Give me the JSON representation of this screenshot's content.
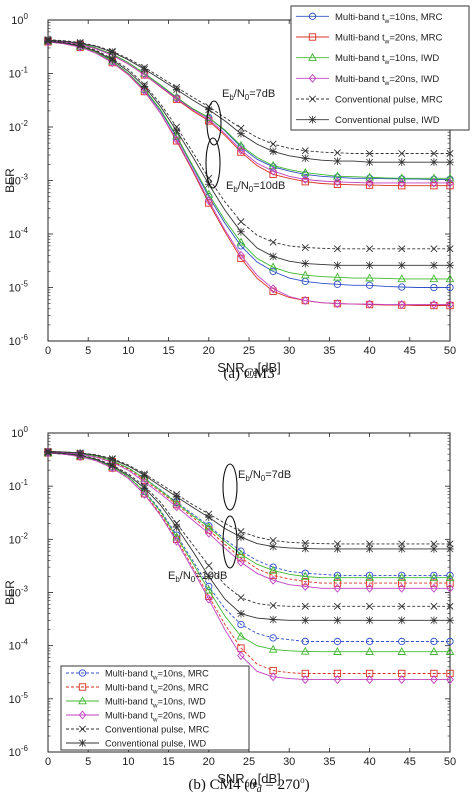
{
  "chart_data": [
    {
      "type": "line",
      "caption": "(a) CM3",
      "xlabel": "SNR",
      "xlabel_sub": "pre",
      "xlabel_unit": "[dB]",
      "ylabel": "BER",
      "xlim": [
        0,
        50
      ],
      "ylim": [
        1e-06,
        1
      ],
      "yscale": "log",
      "grid": false,
      "xticks": [
        "0",
        "5",
        "10",
        "15",
        "20",
        "25",
        "30",
        "35",
        "40",
        "45",
        "50"
      ],
      "yticks": [
        {
          "base": "10",
          "exp": "0"
        },
        {
          "base": "10",
          "exp": "-1"
        },
        {
          "base": "10",
          "exp": "-2"
        },
        {
          "base": "10",
          "exp": "-3"
        },
        {
          "base": "10",
          "exp": "-4"
        },
        {
          "base": "10",
          "exp": "-5"
        },
        {
          "base": "10",
          "exp": "-6"
        }
      ],
      "legend_position": "top-right",
      "annotations": [
        {
          "text_pre": "E",
          "sub1": "b",
          "text_mid": "/N",
          "sub2": "0",
          "text_post": "=7dB"
        },
        {
          "text_pre": "E",
          "sub1": "b",
          "text_mid": "/N",
          "sub2": "0",
          "text_post": "=10dB"
        }
      ],
      "x": [
        0,
        2,
        4,
        6,
        8,
        10,
        12,
        14,
        16,
        18,
        20,
        22,
        24,
        26,
        28,
        30,
        32,
        34,
        36,
        38,
        40,
        42,
        44,
        46,
        48,
        50
      ],
      "series": [
        {
          "name": "Multi-band  t_w=10ns, MRC",
          "name_pre": "Multi-band  t",
          "name_sub": "w",
          "name_post": "=10ns, MRC",
          "color": "#3050c8",
          "marker": "circle",
          "dash": false,
          "values_7dB": [
            0.42,
            0.4,
            0.36,
            0.3,
            0.23,
            0.16,
            0.1,
            0.06,
            0.035,
            0.022,
            0.015,
            0.0085,
            0.0042,
            0.0025,
            0.0018,
            0.0015,
            0.0013,
            0.0012,
            0.00115,
            0.0011,
            0.0011,
            0.00108,
            0.00107,
            0.00106,
            0.00105,
            0.00105
          ],
          "values_10dB": [
            0.4,
            0.37,
            0.32,
            0.25,
            0.17,
            0.1,
            0.05,
            0.02,
            0.0065,
            0.0018,
            0.0005,
            0.00016,
            6e-05,
            3e-05,
            2e-05,
            1.5e-05,
            1.3e-05,
            1.2e-05,
            1.15e-05,
            1.1e-05,
            1.1e-05,
            1.05e-05,
            1.02e-05,
            1e-05,
            1e-05,
            1e-05
          ]
        },
        {
          "name": "Multi-band  t_w=20ns, MRC",
          "name_pre": "Multi-band  t",
          "name_sub": "w",
          "name_post": "=20ns, MRC",
          "color": "#d83020",
          "marker": "square",
          "dash": false,
          "values_7dB": [
            0.41,
            0.39,
            0.35,
            0.29,
            0.22,
            0.15,
            0.094,
            0.056,
            0.033,
            0.02,
            0.013,
            0.007,
            0.0034,
            0.0019,
            0.0013,
            0.0011,
            0.00095,
            0.00088,
            0.00085,
            0.00083,
            0.00082,
            0.00081,
            0.0008,
            0.0008,
            0.0008,
            0.0008
          ],
          "values_10dB": [
            0.39,
            0.36,
            0.31,
            0.24,
            0.16,
            0.095,
            0.046,
            0.018,
            0.0055,
            0.0015,
            0.00038,
            0.00011,
            3.5e-05,
            1.5e-05,
            8.5e-06,
            6.5e-06,
            5.7e-06,
            5.2e-06,
            5e-06,
            4.9e-06,
            4.8e-06,
            4.7e-06,
            4.7e-06,
            4.6e-06,
            4.6e-06,
            4.6e-06
          ]
        },
        {
          "name": "Multi-band  t_w=10ns, IWD",
          "name_pre": "Multi-band  t",
          "name_sub": "w",
          "name_post": "=10ns, IWD",
          "color": "#40b830",
          "marker": "triangle",
          "dash": false,
          "values_7dB": [
            0.42,
            0.4,
            0.36,
            0.3,
            0.23,
            0.16,
            0.1,
            0.061,
            0.036,
            0.022,
            0.015,
            0.0088,
            0.0045,
            0.0027,
            0.0019,
            0.0016,
            0.0014,
            0.0013,
            0.0012,
            0.00118,
            0.00115,
            0.00112,
            0.0011,
            0.0011,
            0.0011,
            0.0011
          ],
          "values_10dB": [
            0.4,
            0.37,
            0.32,
            0.25,
            0.17,
            0.1,
            0.051,
            0.021,
            0.0068,
            0.0019,
            0.00055,
            0.00018,
            7e-05,
            3.5e-05,
            2.4e-05,
            1.9e-05,
            1.7e-05,
            1.6e-05,
            1.55e-05,
            1.5e-05,
            1.5e-05,
            1.48e-05,
            1.45e-05,
            1.45e-05,
            1.45e-05,
            1.45e-05
          ]
        },
        {
          "name": "Multi-band  t_w=20ns, IWD",
          "name_pre": "Multi-band  t",
          "name_sub": "w",
          "name_post": "=20ns, IWD",
          "color": "#c040c0",
          "marker": "diamond",
          "dash": false,
          "values_7dB": [
            0.41,
            0.39,
            0.35,
            0.29,
            0.22,
            0.15,
            0.095,
            0.057,
            0.034,
            0.021,
            0.014,
            0.0075,
            0.0037,
            0.0021,
            0.0015,
            0.0012,
            0.00105,
            0.00098,
            0.00094,
            0.00092,
            0.0009,
            0.0009,
            0.0009,
            0.0009,
            0.0009,
            0.0009
          ],
          "values_10dB": [
            0.39,
            0.36,
            0.31,
            0.24,
            0.16,
            0.096,
            0.047,
            0.018,
            0.0058,
            0.0016,
            0.00042,
            0.00012,
            4e-05,
            1.7e-05,
            9.5e-06,
            6.8e-06,
            5.7e-06,
            5.2e-06,
            5e-06,
            4.9e-06,
            4.9e-06,
            4.8e-06,
            4.8e-06,
            4.8e-06,
            4.8e-06,
            4.8e-06
          ]
        },
        {
          "name": "Conventional pulse, MRC",
          "name_pre": "Conventional pulse, MRC",
          "name_sub": "",
          "name_post": "",
          "color": "#333333",
          "marker": "x",
          "dash": true,
          "values_7dB": [
            0.43,
            0.41,
            0.38,
            0.33,
            0.26,
            0.19,
            0.13,
            0.085,
            0.055,
            0.036,
            0.024,
            0.015,
            0.0095,
            0.0064,
            0.0048,
            0.004,
            0.0036,
            0.0034,
            0.0033,
            0.0032,
            0.0032,
            0.0032,
            0.0032,
            0.0032,
            0.0032,
            0.0032
          ],
          "values_10dB": [
            0.41,
            0.38,
            0.34,
            0.27,
            0.19,
            0.12,
            0.062,
            0.027,
            0.01,
            0.0034,
            0.0011,
            0.0004,
            0.00017,
            9.5e-05,
            7e-05,
            6e-05,
            5.6e-05,
            5.4e-05,
            5.3e-05,
            5.3e-05,
            5.3e-05,
            5.3e-05,
            5.3e-05,
            5.3e-05,
            5.3e-05,
            5.3e-05
          ]
        },
        {
          "name": "Conventional pulse, IWD",
          "name_pre": "Conventional pulse, IWD",
          "name_sub": "",
          "name_post": "",
          "color": "#333333",
          "marker": "star",
          "dash": false,
          "values_7dB": [
            0.42,
            0.4,
            0.37,
            0.32,
            0.25,
            0.18,
            0.12,
            0.078,
            0.05,
            0.032,
            0.021,
            0.013,
            0.0075,
            0.0048,
            0.0035,
            0.0029,
            0.0026,
            0.0024,
            0.0023,
            0.0023,
            0.0022,
            0.0022,
            0.0022,
            0.0022,
            0.0022,
            0.0022
          ],
          "values_10dB": [
            0.4,
            0.37,
            0.33,
            0.26,
            0.18,
            0.11,
            0.057,
            0.024,
            0.0085,
            0.0028,
            0.00085,
            0.00028,
            0.00011,
            5.5e-05,
            3.8e-05,
            3.1e-05,
            2.8e-05,
            2.7e-05,
            2.6e-05,
            2.6e-05,
            2.6e-05,
            2.6e-05,
            2.6e-05,
            2.6e-05,
            2.6e-05,
            2.6e-05
          ]
        }
      ]
    },
    {
      "type": "line",
      "caption_pre": "(b) CM4 (",
      "caption_theta": "θ",
      "caption_theta_sub": "d",
      "caption_eq": " = 270",
      "caption_deg": "o",
      "caption_post": ")",
      "xlabel": "SNR",
      "xlabel_sub": "pre",
      "xlabel_unit": "[dB]",
      "ylabel": "BER",
      "xlim": [
        0,
        50
      ],
      "ylim": [
        1e-06,
        1
      ],
      "yscale": "log",
      "grid": false,
      "xticks": [
        "0",
        "5",
        "10",
        "15",
        "20",
        "25",
        "30",
        "35",
        "40",
        "45",
        "50"
      ],
      "yticks": [
        {
          "base": "10",
          "exp": "0"
        },
        {
          "base": "10",
          "exp": "-1"
        },
        {
          "base": "10",
          "exp": "-2"
        },
        {
          "base": "10",
          "exp": "-3"
        },
        {
          "base": "10",
          "exp": "-4"
        },
        {
          "base": "10",
          "exp": "-5"
        },
        {
          "base": "10",
          "exp": "-6"
        }
      ],
      "legend_position": "bottom-left",
      "annotations": [
        {
          "text_pre": "E",
          "sub1": "b",
          "text_mid": "/N",
          "sub2": "0",
          "text_post": "=7dB"
        },
        {
          "text_pre": "E",
          "sub1": "b",
          "text_mid": "/N",
          "sub2": "0",
          "text_post": "=10dB"
        }
      ],
      "x": [
        0,
        2,
        4,
        6,
        8,
        10,
        12,
        14,
        16,
        18,
        20,
        22,
        24,
        26,
        28,
        30,
        32,
        34,
        36,
        38,
        40,
        42,
        44,
        46,
        48,
        50
      ],
      "series": [
        {
          "name": "Multi-band  t_w=10ns, MRC",
          "name_pre": "Multi-band  t",
          "name_sub": "w",
          "name_post": "=10ns, MRC",
          "color": "#3050c8",
          "marker": "circle",
          "dash": true,
          "values_7dB": [
            0.44,
            0.43,
            0.41,
            0.37,
            0.3,
            0.22,
            0.14,
            0.085,
            0.05,
            0.03,
            0.018,
            0.01,
            0.006,
            0.004,
            0.003,
            0.0025,
            0.0023,
            0.0022,
            0.0021,
            0.0021,
            0.0021,
            0.0021,
            0.0021,
            0.0021,
            0.0021,
            0.0021
          ],
          "values_10dB": [
            0.42,
            0.4,
            0.37,
            0.31,
            0.23,
            0.15,
            0.08,
            0.035,
            0.012,
            0.004,
            0.0013,
            0.0005,
            0.00025,
            0.00017,
            0.00014,
            0.00013,
            0.00012,
            0.00012,
            0.00012,
            0.00012,
            0.00012,
            0.00012,
            0.00012,
            0.00012,
            0.00012,
            0.00012
          ]
        },
        {
          "name": "Multi-band  t_w=20ns, MRC",
          "name_pre": "Multi-band  t",
          "name_sub": "w",
          "name_post": "=20ns, MRC",
          "color": "#d83020",
          "marker": "square",
          "dash": true,
          "values_7dB": [
            0.44,
            0.43,
            0.4,
            0.36,
            0.29,
            0.21,
            0.13,
            0.078,
            0.045,
            0.026,
            0.015,
            0.008,
            0.0045,
            0.0028,
            0.0021,
            0.0018,
            0.0016,
            0.0015,
            0.0015,
            0.0015,
            0.0015,
            0.0015,
            0.0015,
            0.0015,
            0.0015,
            0.0015
          ],
          "values_10dB": [
            0.42,
            0.4,
            0.36,
            0.3,
            0.22,
            0.14,
            0.072,
            0.03,
            0.01,
            0.003,
            0.00085,
            0.00025,
            9e-05,
            4.5e-05,
            3.4e-05,
            3.1e-05,
            3e-05,
            3e-05,
            3e-05,
            3e-05,
            3e-05,
            3e-05,
            3e-05,
            3e-05,
            3e-05,
            3e-05
          ]
        },
        {
          "name": "Multi-band  t_w=10ns, IWD",
          "name_pre": "Multi-band  t",
          "name_sub": "w",
          "name_post": "=10ns, IWD",
          "color": "#40b830",
          "marker": "triangle",
          "dash": false,
          "values_7dB": [
            0.44,
            0.43,
            0.41,
            0.37,
            0.3,
            0.22,
            0.14,
            0.083,
            0.048,
            0.028,
            0.017,
            0.0092,
            0.0052,
            0.0034,
            0.0026,
            0.0022,
            0.002,
            0.0019,
            0.0019,
            0.0019,
            0.0019,
            0.0019,
            0.0019,
            0.0019,
            0.0019,
            0.0019
          ],
          "values_10dB": [
            0.42,
            0.4,
            0.37,
            0.31,
            0.23,
            0.15,
            0.078,
            0.033,
            0.011,
            0.0036,
            0.0011,
            0.00036,
            0.00015,
            0.0001,
            8.5e-05,
            8e-05,
            7.8e-05,
            7.7e-05,
            7.7e-05,
            7.7e-05,
            7.7e-05,
            7.7e-05,
            7.7e-05,
            7.7e-05,
            7.7e-05,
            7.7e-05
          ]
        },
        {
          "name": "Multi-band  t_w=20ns, IWD",
          "name_pre": "Multi-band  t",
          "name_sub": "w",
          "name_post": "=20ns, IWD",
          "color": "#c040c0",
          "marker": "diamond",
          "dash": false,
          "values_7dB": [
            0.44,
            0.42,
            0.4,
            0.35,
            0.28,
            0.2,
            0.12,
            0.072,
            0.041,
            0.023,
            0.013,
            0.0068,
            0.0037,
            0.0023,
            0.0017,
            0.0014,
            0.0013,
            0.0012,
            0.0012,
            0.0012,
            0.0012,
            0.0012,
            0.0012,
            0.0012,
            0.0012,
            0.0012
          ],
          "values_10dB": [
            0.42,
            0.4,
            0.36,
            0.3,
            0.22,
            0.14,
            0.07,
            0.028,
            0.0092,
            0.0027,
            0.00075,
            0.0002,
            6.5e-05,
            3.3e-05,
            2.6e-05,
            2.4e-05,
            2.3e-05,
            2.3e-05,
            2.3e-05,
            2.3e-05,
            2.3e-05,
            2.3e-05,
            2.3e-05,
            2.3e-05,
            2.3e-05,
            2.3e-05
          ]
        },
        {
          "name": "Conventional pulse, MRC",
          "name_pre": "Conventional pulse, MRC",
          "name_sub": "",
          "name_post": "",
          "color": "#333333",
          "marker": "x",
          "dash": true,
          "values_7dB": [
            0.45,
            0.44,
            0.42,
            0.39,
            0.33,
            0.25,
            0.17,
            0.11,
            0.07,
            0.045,
            0.03,
            0.02,
            0.014,
            0.011,
            0.0095,
            0.0088,
            0.0085,
            0.0083,
            0.0082,
            0.0082,
            0.0082,
            0.0082,
            0.0082,
            0.0082,
            0.0082,
            0.0082
          ],
          "values_10dB": [
            0.43,
            0.41,
            0.38,
            0.33,
            0.25,
            0.17,
            0.1,
            0.05,
            0.02,
            0.008,
            0.0032,
            0.0014,
            0.0008,
            0.00062,
            0.00057,
            0.00055,
            0.00055,
            0.00055,
            0.00055,
            0.00055,
            0.00055,
            0.00055,
            0.00055,
            0.00055,
            0.00055,
            0.00055
          ]
        },
        {
          "name": "Conventional pulse, IWD",
          "name_pre": "Conventional pulse, IWD",
          "name_sub": "",
          "name_post": "",
          "color": "#333333",
          "marker": "star",
          "dash": false,
          "values_7dB": [
            0.45,
            0.44,
            0.42,
            0.38,
            0.32,
            0.24,
            0.16,
            0.1,
            0.063,
            0.04,
            0.026,
            0.016,
            0.011,
            0.0083,
            0.0073,
            0.0069,
            0.0067,
            0.0066,
            0.0066,
            0.0066,
            0.0066,
            0.0066,
            0.0066,
            0.0066,
            0.0066,
            0.0066
          ],
          "values_10dB": [
            0.43,
            0.41,
            0.38,
            0.32,
            0.24,
            0.16,
            0.092,
            0.044,
            0.017,
            0.006,
            0.002,
            0.00075,
            0.0004,
            0.00033,
            0.00031,
            0.0003,
            0.0003,
            0.0003,
            0.0003,
            0.0003,
            0.0003,
            0.0003,
            0.0003,
            0.0003,
            0.0003,
            0.0003
          ]
        }
      ]
    }
  ]
}
